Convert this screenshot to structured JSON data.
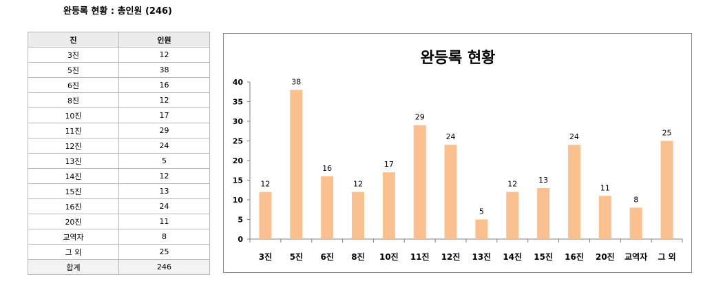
{
  "page": {
    "heading": "완등록 현황 : 총인원 (246)"
  },
  "table": {
    "headers": [
      "진",
      "인원"
    ],
    "rows": [
      {
        "label": "3진",
        "value": "12"
      },
      {
        "label": "5진",
        "value": "38"
      },
      {
        "label": "6진",
        "value": "16"
      },
      {
        "label": "8진",
        "value": "12"
      },
      {
        "label": "10진",
        "value": "17"
      },
      {
        "label": "11진",
        "value": "29"
      },
      {
        "label": "12진",
        "value": "24"
      },
      {
        "label": "13진",
        "value": "5"
      },
      {
        "label": "14진",
        "value": "12"
      },
      {
        "label": "15진",
        "value": "13"
      },
      {
        "label": "16진",
        "value": "24"
      },
      {
        "label": "20진",
        "value": "11"
      },
      {
        "label": "교역자",
        "value": "8"
      },
      {
        "label": "그 외",
        "value": "25"
      }
    ],
    "total": {
      "label": "합계",
      "value": "246"
    }
  },
  "chart_data": {
    "type": "bar",
    "title": "완등록 현황",
    "categories": [
      "3진",
      "5진",
      "6진",
      "8진",
      "10진",
      "11진",
      "12진",
      "13진",
      "14진",
      "15진",
      "16진",
      "20진",
      "교역자",
      "그 외"
    ],
    "values": [
      12,
      38,
      16,
      12,
      17,
      29,
      24,
      5,
      12,
      13,
      24,
      11,
      8,
      25
    ],
    "ylim": [
      0,
      40
    ],
    "yticks": [
      0,
      5,
      10,
      15,
      20,
      25,
      30,
      35,
      40
    ],
    "grid": false,
    "legend": "none",
    "bar_color": "#fac090",
    "data_labels": true
  }
}
